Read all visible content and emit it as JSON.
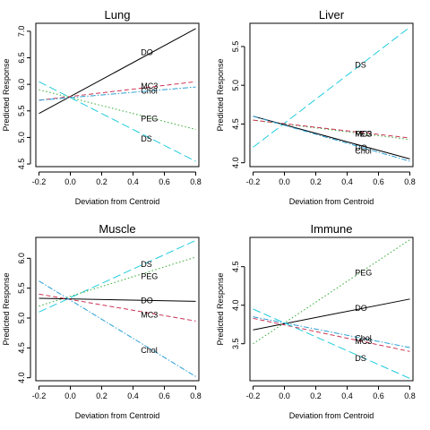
{
  "chart_data": [
    {
      "type": "line",
      "title": "Lung",
      "xlabel": "Deviation from Centroid",
      "ylabel": "Predicted Response",
      "xlim": [
        -0.22,
        0.82
      ],
      "ylim": [
        4.45,
        7.15
      ],
      "xticks": [
        "-0.2",
        "0.0",
        "0.2",
        "0.4",
        "0.6",
        "0.8"
      ],
      "yticks": [
        "4.5",
        "5.0",
        "5.5",
        "6.0",
        "6.5",
        "7.0"
      ],
      "series": [
        {
          "name": "DO",
          "color": "#000000",
          "dash": "solid",
          "x": [
            -0.2,
            0.8
          ],
          "y": [
            5.45,
            7.05
          ],
          "label_at": [
            0.45,
            6.6
          ]
        },
        {
          "name": "MC3",
          "color": "#cc3355",
          "dash": "dash",
          "x": [
            -0.2,
            0.8
          ],
          "y": [
            5.7,
            6.05
          ],
          "label_at": [
            0.45,
            5.97
          ]
        },
        {
          "name": "Chol",
          "color": "#2a9fd6",
          "dash": "dashdot",
          "x": [
            -0.2,
            0.8
          ],
          "y": [
            5.7,
            5.95
          ],
          "label_at": [
            0.45,
            5.88
          ]
        },
        {
          "name": "PEG",
          "color": "#33aa33",
          "dash": "dot",
          "x": [
            -0.2,
            0.8
          ],
          "y": [
            5.9,
            5.15
          ],
          "label_at": [
            0.45,
            5.35
          ]
        },
        {
          "name": "DS",
          "color": "#22ccdd",
          "dash": "longdash",
          "x": [
            -0.2,
            0.8
          ],
          "y": [
            6.05,
            4.55
          ],
          "label_at": [
            0.45,
            4.97
          ]
        }
      ]
    },
    {
      "type": "line",
      "title": "Liver",
      "xlabel": "Deviation from Centroid",
      "ylabel": "Predicted Response",
      "xlim": [
        -0.22,
        0.82
      ],
      "ylim": [
        3.95,
        5.8
      ],
      "xticks": [
        "-0.2",
        "0.0",
        "0.2",
        "0.4",
        "0.6",
        "0.8"
      ],
      "yticks": [
        "4.0",
        "4.5",
        "5.0",
        "5.5"
      ],
      "series": [
        {
          "name": "DS",
          "color": "#22ccdd",
          "dash": "longdash",
          "x": [
            -0.2,
            0.8
          ],
          "y": [
            4.2,
            5.75
          ],
          "label_at": [
            0.45,
            5.26
          ]
        },
        {
          "name": "PEG",
          "color": "#33aa33",
          "dash": "dot",
          "x": [
            -0.2,
            0.8
          ],
          "y": [
            4.55,
            4.3
          ],
          "label_at": [
            0.45,
            4.37
          ]
        },
        {
          "name": "MC3",
          "color": "#cc3355",
          "dash": "dash",
          "x": [
            -0.2,
            0.8
          ],
          "y": [
            4.55,
            4.32
          ],
          "label_at": [
            0.45,
            4.37
          ]
        },
        {
          "name": "DO",
          "color": "#000000",
          "dash": "solid",
          "x": [
            -0.2,
            0.8
          ],
          "y": [
            4.6,
            4.05
          ],
          "label_at": [
            0.45,
            4.19
          ]
        },
        {
          "name": "Chol",
          "color": "#2a9fd6",
          "dash": "dashdot",
          "x": [
            -0.2,
            0.8
          ],
          "y": [
            4.6,
            4.02
          ],
          "label_at": [
            0.45,
            4.15
          ]
        }
      ]
    },
    {
      "type": "line",
      "title": "Muscle",
      "xlabel": "Deviation from Centroid",
      "ylabel": "Predicted Response",
      "xlim": [
        -0.22,
        0.82
      ],
      "ylim": [
        3.95,
        6.35
      ],
      "xticks": [
        "-0.2",
        "0.0",
        "0.2",
        "0.4",
        "0.6",
        "0.8"
      ],
      "yticks": [
        "4.0",
        "4.5",
        "5.0",
        "5.5",
        "6.0"
      ],
      "series": [
        {
          "name": "DS",
          "color": "#22ccdd",
          "dash": "longdash",
          "x": [
            -0.2,
            0.8
          ],
          "y": [
            5.1,
            6.3
          ],
          "label_at": [
            0.45,
            5.9
          ]
        },
        {
          "name": "PEG",
          "color": "#33aa33",
          "dash": "dot",
          "x": [
            -0.2,
            0.8
          ],
          "y": [
            5.2,
            6.02
          ],
          "label_at": [
            0.45,
            5.7
          ]
        },
        {
          "name": "DO",
          "color": "#000000",
          "dash": "solid",
          "x": [
            -0.2,
            0.8
          ],
          "y": [
            5.33,
            5.28
          ],
          "label_at": [
            0.45,
            5.29
          ]
        },
        {
          "name": "MC3",
          "color": "#cc3355",
          "dash": "dash",
          "x": [
            -0.2,
            0.8
          ],
          "y": [
            5.4,
            4.95
          ],
          "label_at": [
            0.45,
            5.05
          ]
        },
        {
          "name": "Chol",
          "color": "#2a9fd6",
          "dash": "dashdot",
          "x": [
            -0.2,
            0.8
          ],
          "y": [
            5.62,
            4.02
          ],
          "label_at": [
            0.45,
            4.46
          ]
        }
      ]
    },
    {
      "type": "line",
      "title": "Immune",
      "xlabel": "Deviation from Centroid",
      "ylabel": "Predicted Response",
      "xlim": [
        -0.22,
        0.82
      ],
      "ylim": [
        3.02,
        4.88
      ],
      "xticks": [
        "-0.2",
        "0.0",
        "0.2",
        "0.4",
        "0.6",
        "0.8"
      ],
      "yticks": [
        "3.5",
        "4.0",
        "4.5"
      ],
      "series": [
        {
          "name": "PEG",
          "color": "#33aa33",
          "dash": "dot",
          "x": [
            -0.2,
            0.8
          ],
          "y": [
            3.5,
            4.85
          ],
          "label_at": [
            0.45,
            4.42
          ]
        },
        {
          "name": "DO",
          "color": "#000000",
          "dash": "solid",
          "x": [
            -0.2,
            0.8
          ],
          "y": [
            3.68,
            4.08
          ],
          "label_at": [
            0.45,
            3.96
          ]
        },
        {
          "name": "Chol",
          "color": "#2a9fd6",
          "dash": "dashdot",
          "x": [
            -0.2,
            0.8
          ],
          "y": [
            3.85,
            3.45
          ],
          "label_at": [
            0.45,
            3.57
          ]
        },
        {
          "name": "MC3",
          "color": "#cc3355",
          "dash": "dash",
          "x": [
            -0.2,
            0.8
          ],
          "y": [
            3.83,
            3.4
          ],
          "label_at": [
            0.45,
            3.53
          ]
        },
        {
          "name": "DS",
          "color": "#22ccdd",
          "dash": "longdash",
          "x": [
            -0.2,
            0.8
          ],
          "y": [
            3.95,
            3.05
          ],
          "label_at": [
            0.45,
            3.31
          ]
        }
      ]
    }
  ]
}
